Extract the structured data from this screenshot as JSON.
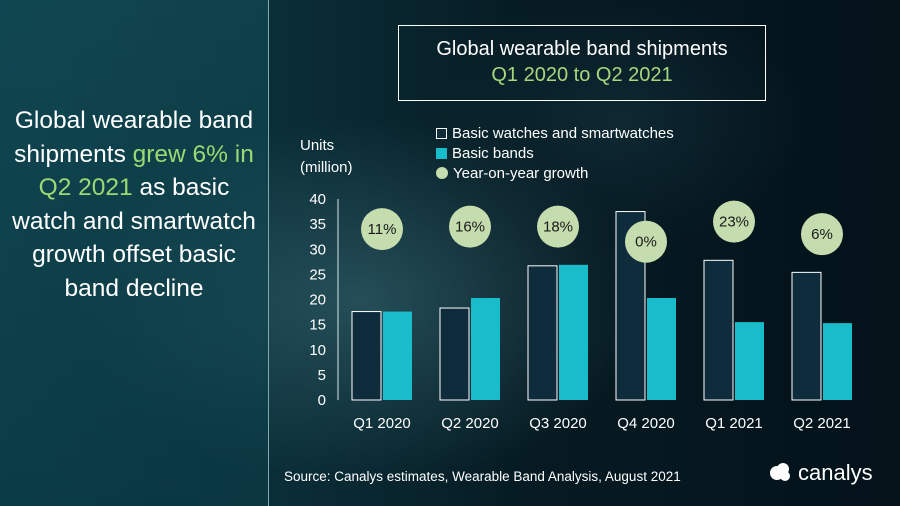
{
  "headline": {
    "part1": "Global wearable band shipments ",
    "highlight": "grew 6% in Q2 2021",
    "part2": " as basic watch and smartwatch growth offset basic band decline"
  },
  "title": {
    "line1": "Global wearable band shipments",
    "line2": "Q1 2020 to Q2 2021"
  },
  "source": "Source: Canalys estimates, Wearable Band Analysis, August 2021",
  "brand": "canalys",
  "colors": {
    "basic_watches": "#0f2c3d",
    "basic_bands": "#18bccb",
    "yoy_bubble": "#c4dcae",
    "highlight_text": "#9cd873"
  },
  "chart_data": {
    "type": "bar",
    "ylabel": "Units\n(million)",
    "ylim": [
      0,
      40
    ],
    "yticks": [
      0,
      5,
      10,
      15,
      20,
      25,
      30,
      35,
      40
    ],
    "categories": [
      "Q1 2020",
      "Q2 2020",
      "Q3 2020",
      "Q4 2020",
      "Q1 2021",
      "Q2 2021"
    ],
    "series": [
      {
        "name": "Basic watches and smartwatches",
        "values": [
          17.6,
          18.3,
          26.7,
          37.5,
          27.8,
          25.4
        ]
      },
      {
        "name": "Basic bands",
        "values": [
          17.6,
          20.3,
          26.9,
          20.3,
          15.5,
          15.3
        ]
      }
    ],
    "yoy_growth": {
      "name": "Year-on-year growth",
      "labels": [
        "11%",
        "16%",
        "18%",
        "0%",
        "23%",
        "6%"
      ],
      "bubble_y": [
        34,
        34.5,
        34.5,
        31.5,
        35.5,
        33
      ]
    },
    "legend_position": "top"
  }
}
